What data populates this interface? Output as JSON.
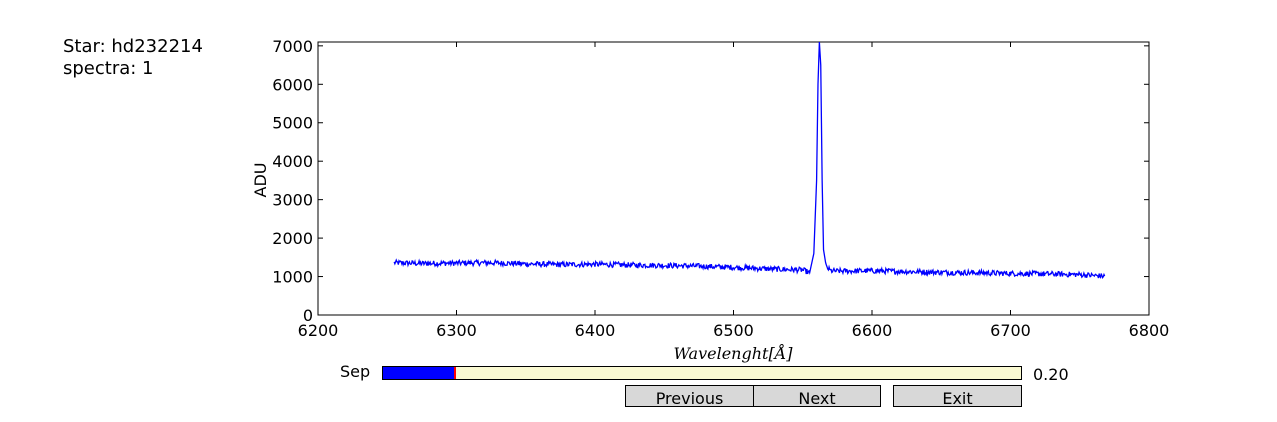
{
  "info": {
    "star_line": "Star: hd232214",
    "spectra_line": "spectra: 1"
  },
  "chart_data": {
    "type": "line",
    "xlabel": "Wavelenght[Å]",
    "ylabel": "ADU",
    "xlim": [
      6200,
      6800
    ],
    "ylim": [
      0,
      7100
    ],
    "x_ticks": [
      6200,
      6300,
      6400,
      6500,
      6600,
      6700,
      6800
    ],
    "y_ticks": [
      0,
      1000,
      2000,
      3000,
      4000,
      5000,
      6000,
      7000
    ],
    "grid": false,
    "series": [
      {
        "color": "#0000ff",
        "x": [
          6255,
          6275,
          6300,
          6325,
          6350,
          6375,
          6400,
          6425,
          6450,
          6475,
          6500,
          6525,
          6550,
          6555,
          6558,
          6560,
          6561,
          6562,
          6563,
          6564,
          6565,
          6567,
          6570,
          6575,
          6600,
          6625,
          6650,
          6675,
          6700,
          6725,
          6750,
          6768
        ],
        "y": [
          1360,
          1340,
          1350,
          1360,
          1330,
          1310,
          1320,
          1300,
          1290,
          1270,
          1240,
          1200,
          1170,
          1100,
          1600,
          3500,
          6000,
          7100,
          6500,
          3500,
          1700,
          1250,
          1150,
          1140,
          1150,
          1130,
          1110,
          1100,
          1080,
          1070,
          1050,
          1010
        ]
      }
    ]
  },
  "slider": {
    "label": "Sep",
    "value": 0.2,
    "value_text": "0.20",
    "fill_color": "#0000ff",
    "track_color": "#fafad2",
    "marker_color": "#ff0000"
  },
  "buttons": {
    "previous": "Previous",
    "next": "Next",
    "exit": "Exit"
  }
}
